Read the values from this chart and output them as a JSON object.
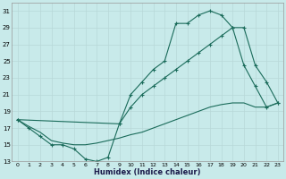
{
  "background_color": "#c8eaea",
  "grid_color": "#b8d8d8",
  "line_color": "#1a6b5a",
  "xlabel": "Humidex (Indice chaleur)",
  "ylim": [
    13,
    32
  ],
  "xlim": [
    -0.5,
    23.5
  ],
  "yticks": [
    13,
    15,
    17,
    19,
    21,
    23,
    25,
    27,
    29,
    31
  ],
  "xticks": [
    0,
    1,
    2,
    3,
    4,
    5,
    6,
    7,
    8,
    9,
    10,
    11,
    12,
    13,
    14,
    15,
    16,
    17,
    18,
    19,
    20,
    21,
    22,
    23
  ],
  "line1_x": [
    0,
    1,
    2,
    3,
    4,
    5,
    6,
    7,
    8,
    9,
    10,
    11,
    12,
    13,
    14,
    15,
    16,
    17,
    18,
    19,
    20,
    21,
    22,
    23
  ],
  "line1_y": [
    18.0,
    17.0,
    16.0,
    15.0,
    15.0,
    14.5,
    13.3,
    13.0,
    13.5,
    17.5,
    21.0,
    22.5,
    24.0,
    25.0,
    29.5,
    29.5,
    30.5,
    31.0,
    30.5,
    29.0,
    24.5,
    22.0,
    19.5,
    20.0
  ],
  "line2_x": [
    0,
    9,
    10,
    11,
    12,
    13,
    14,
    15,
    16,
    17,
    18,
    19,
    20,
    21,
    22,
    23
  ],
  "line2_y": [
    18.0,
    17.5,
    19.5,
    21.0,
    22.0,
    23.0,
    24.0,
    25.0,
    26.0,
    27.0,
    28.0,
    29.0,
    29.0,
    24.5,
    22.5,
    20.0
  ],
  "line3_x": [
    0,
    1,
    2,
    3,
    4,
    5,
    6,
    7,
    8,
    9,
    10,
    11,
    12,
    13,
    14,
    15,
    16,
    17,
    18,
    19,
    20,
    21,
    22,
    23
  ],
  "line3_y": [
    18.0,
    17.2,
    16.5,
    15.5,
    15.2,
    15.0,
    15.0,
    15.2,
    15.5,
    15.8,
    16.2,
    16.5,
    17.0,
    17.5,
    18.0,
    18.5,
    19.0,
    19.5,
    19.8,
    20.0,
    20.0,
    19.5,
    19.5,
    20.0
  ]
}
